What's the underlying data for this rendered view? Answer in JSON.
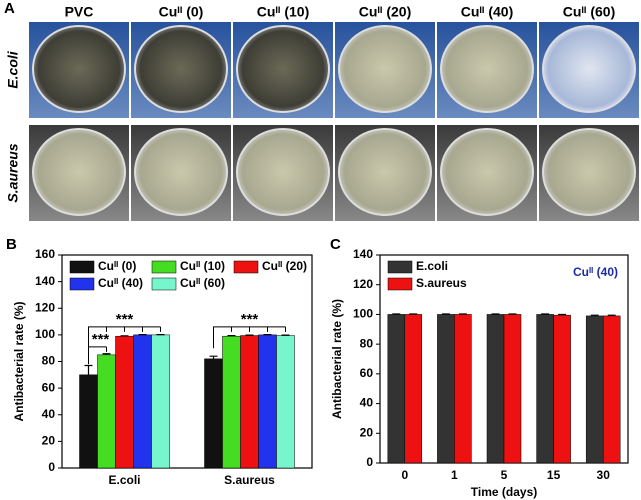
{
  "panel_a": {
    "label": "A",
    "columns": [
      "PVC",
      "Cuᴵᴵ (0)",
      "Cuᴵᴵ (10)",
      "Cuᴵᴵ (20)",
      "Cuᴵᴵ (40)",
      "Cuᴵᴵ (60)"
    ],
    "rows": [
      "E.coli",
      "S.aureus"
    ]
  },
  "chart_data": [
    {
      "type": "bar",
      "panel_label": "B",
      "ylabel": "Antibacterial rate (%)",
      "categories": [
        "E.coli",
        "S.aureus"
      ],
      "series": [
        {
          "name": "Cuᴵᴵ (0)",
          "color": "#111111",
          "values": [
            70,
            82
          ],
          "errors": [
            7,
            2
          ]
        },
        {
          "name": "Cuᴵᴵ (10)",
          "color": "#44dd22",
          "values": [
            85,
            99
          ],
          "errors": [
            0.8,
            0.5
          ]
        },
        {
          "name": "Cuᴵᴵ (20)",
          "color": "#ee1111",
          "values": [
            99,
            99.5
          ],
          "errors": [
            0.3,
            0.3
          ]
        },
        {
          "name": "Cuᴵᴵ (40)",
          "color": "#2233ee",
          "values": [
            100,
            100
          ],
          "errors": [
            0.2,
            0.2
          ]
        },
        {
          "name": "Cuᴵᴵ (60)",
          "color": "#77f5cc",
          "values": [
            100,
            99.5
          ],
          "errors": [
            0.2,
            0.3
          ]
        }
      ],
      "annotations": [
        "***",
        "***",
        "***"
      ],
      "ylim": [
        0,
        160
      ],
      "yticks": [
        0,
        20,
        40,
        60,
        80,
        100,
        120,
        140,
        160
      ]
    },
    {
      "type": "bar",
      "panel_label": "C",
      "ylabel": "Antibacterial rate (%)",
      "xlabel": "Time (days)",
      "categories": [
        "0",
        "1",
        "5",
        "15",
        "30"
      ],
      "series": [
        {
          "name": "E.coli",
          "color": "#333333",
          "values": [
            100,
            100,
            100,
            100,
            99
          ],
          "errors": [
            0.3,
            0.3,
            0.3,
            0.3,
            0.5
          ]
        },
        {
          "name": "S.aureus",
          "color": "#ee1111",
          "values": [
            100,
            100,
            100,
            99.5,
            99
          ],
          "errors": [
            0.3,
            0.3,
            0.3,
            0.5,
            0.5
          ]
        }
      ],
      "annotations": [
        "Cuᴵᴵ (40)"
      ],
      "ylim": [
        0,
        140
      ],
      "yticks": [
        0,
        20,
        40,
        60,
        80,
        100,
        120,
        140
      ]
    }
  ]
}
